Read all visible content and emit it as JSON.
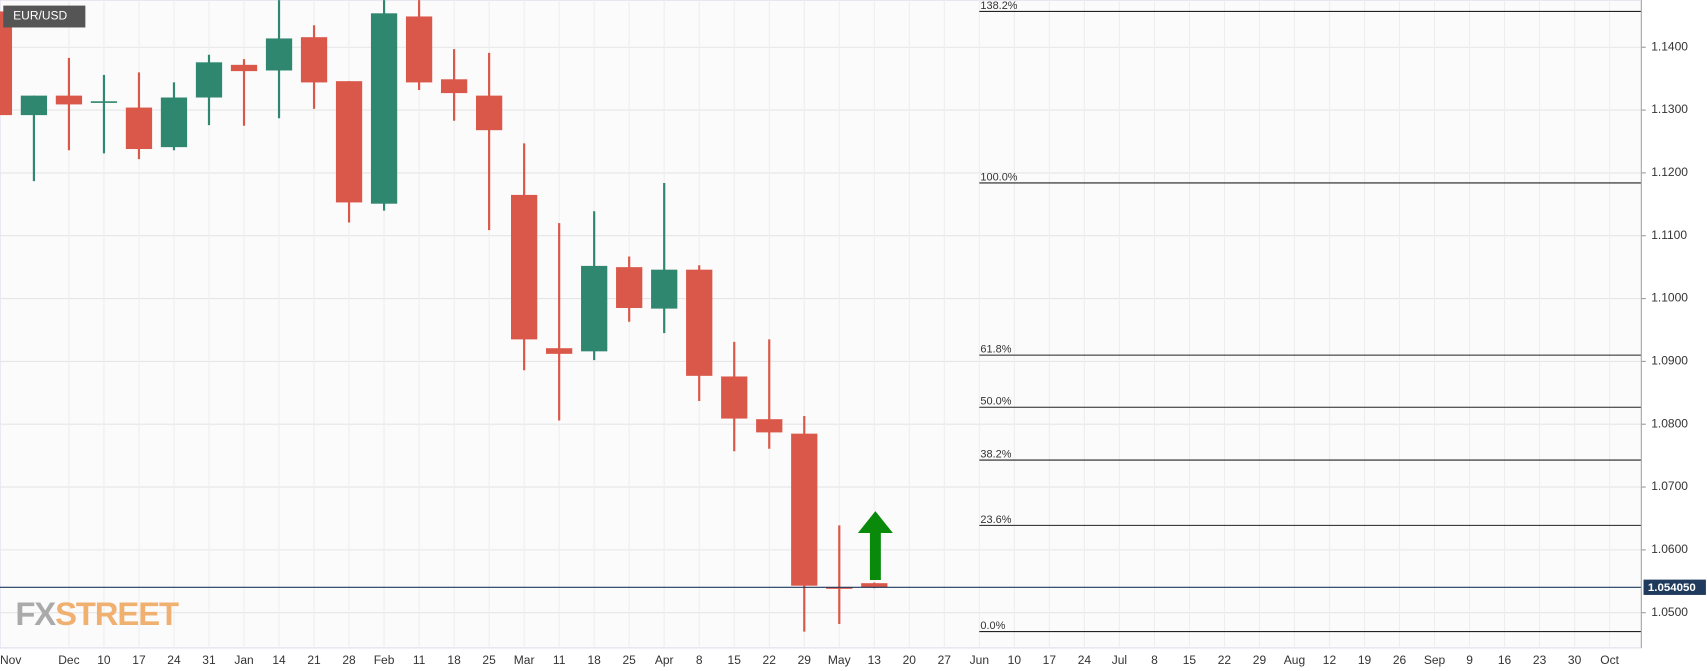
{
  "chart_data": {
    "type": "candlestick",
    "title": "EUR/USD",
    "categories": [
      "Nov",
      null,
      "Dec",
      "10",
      "17",
      "24",
      "31",
      "Jan",
      "14",
      "21",
      "28",
      "Feb",
      "11",
      "18",
      "25",
      "Mar",
      "11",
      "18",
      "25",
      "Apr",
      "8",
      "15",
      "22",
      "29",
      "May",
      "13",
      "20",
      "27",
      "Jun",
      "10",
      "17",
      "24",
      "Jul",
      "8",
      "15",
      "22",
      "29",
      "Aug",
      "12",
      "19",
      "26",
      "Sep",
      "9",
      "16",
      "23",
      "30",
      "Oct"
    ],
    "open": [
      1.1457,
      1.1292,
      1.1323,
      1.1312,
      1.1304,
      1.1241,
      1.132,
      1.1372,
      1.1363,
      1.1416,
      1.1346,
      1.1151,
      1.1449,
      1.1349,
      1.1323,
      1.1165,
      1.0921,
      1.0916,
      1.105,
      1.0984,
      1.1046,
      1.0876,
      1.0808,
      1.0785,
      1.0541,
      1.0547,
      null,
      null,
      null,
      null,
      null,
      null,
      null,
      null,
      null,
      null,
      null,
      null,
      null,
      null,
      null,
      null,
      null,
      null,
      null,
      null,
      null
    ],
    "high": [
      1.1475,
      1.1323,
      1.1383,
      1.1356,
      1.136,
      1.1344,
      1.1388,
      1.1381,
      1.1475,
      1.1435,
      1.1346,
      1.1475,
      1.1475,
      1.1397,
      1.1391,
      1.1247,
      1.112,
      1.1139,
      1.1067,
      1.1184,
      1.1053,
      1.0931,
      1.0935,
      1.0813,
      1.0639,
      1.0548,
      null,
      null,
      null,
      null,
      null,
      null,
      null,
      null,
      null,
      null,
      null,
      null,
      null,
      null,
      null,
      null,
      null,
      null,
      null,
      null,
      null
    ],
    "low": [
      1.1252,
      1.1187,
      1.1236,
      1.1231,
      1.1222,
      1.1236,
      1.1276,
      1.1275,
      1.1287,
      1.1302,
      1.1121,
      1.114,
      1.1332,
      1.1283,
      1.1109,
      1.0886,
      1.0806,
      1.0902,
      1.0963,
      1.0945,
      1.0837,
      1.0757,
      1.0761,
      1.047,
      1.0482,
      1.0539,
      null,
      null,
      null,
      null,
      null,
      null,
      null,
      null,
      null,
      null,
      null,
      null,
      null,
      null,
      null,
      null,
      null,
      null,
      null,
      null,
      null
    ],
    "close": [
      1.1292,
      1.1323,
      1.1309,
      1.1314,
      1.1238,
      1.132,
      1.1376,
      1.1362,
      1.1414,
      1.1344,
      1.1153,
      1.1454,
      1.1344,
      1.1327,
      1.1268,
      1.0935,
      1.0912,
      1.1052,
      1.0985,
      1.1046,
      1.0877,
      1.0809,
      1.0787,
      1.0543,
      1.0538,
      1.054,
      null,
      null,
      null,
      null,
      null,
      null,
      null,
      null,
      null,
      null,
      null,
      null,
      null,
      null,
      null,
      null,
      null,
      null,
      null,
      null,
      null
    ],
    "up_color": "#30876f",
    "down_color": "#d9584a",
    "ylim": [
      1.0444,
      1.1475
    ],
    "yticks": [
      {
        "value": 1.05,
        "label": "1.0500"
      },
      {
        "value": 1.06,
        "label": "1.0600"
      },
      {
        "value": 1.07,
        "label": "1.0700"
      },
      {
        "value": 1.08,
        "label": "1.0800"
      },
      {
        "value": 1.09,
        "label": "1.0900"
      },
      {
        "value": 1.1,
        "label": "1.1000"
      },
      {
        "value": 1.11,
        "label": "1.1100"
      },
      {
        "value": 1.12,
        "label": "1.1200"
      },
      {
        "value": 1.13,
        "label": "1.1300"
      },
      {
        "value": 1.14,
        "label": "1.1400"
      }
    ],
    "grid": true,
    "fib_levels": [
      {
        "value": 1.1457,
        "label": "138.2%"
      },
      {
        "value": 1.1184,
        "label": "100.0%"
      },
      {
        "value": 1.091,
        "label": "61.8%"
      },
      {
        "value": 1.0827,
        "label": "50.0%"
      },
      {
        "value": 1.0743,
        "label": "38.2%"
      },
      {
        "value": 1.0639,
        "label": "23.6%"
      },
      {
        "value": 1.047,
        "label": "0.0%"
      }
    ],
    "last_price": {
      "value": 1.05405,
      "label": "1.054050"
    },
    "watermark": [
      "FX",
      "STREET"
    ]
  }
}
